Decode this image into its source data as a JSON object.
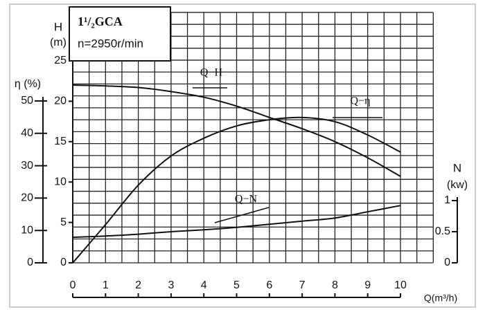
{
  "chart_data": {
    "type": "line",
    "title": "1¹/₂GCA",
    "subtitle": "n=2950r/min",
    "ylabel": [
      "H",
      "(m)"
    ],
    "y2label": "η (%)",
    "y3label": [
      "N",
      "(kw)"
    ],
    "xlabel": "Q(m³/h)",
    "x": [
      0,
      1,
      2,
      3,
      4,
      5,
      6,
      7,
      8,
      9,
      10
    ],
    "xlim": [
      0,
      10
    ],
    "xticks": [
      0,
      1,
      2,
      3,
      4,
      5,
      6,
      7,
      8,
      9,
      10
    ],
    "ylim": [
      0,
      25
    ],
    "yticks": [
      0,
      5,
      10,
      15,
      20,
      25
    ],
    "y2lim": [
      0,
      50
    ],
    "y2ticks": [
      0,
      10,
      20,
      30,
      40,
      50
    ],
    "y3lim": [
      0,
      1
    ],
    "y3ticks": [
      0,
      0.5,
      1
    ],
    "series": [
      {
        "name": "Q−H",
        "color": "#111",
        "axis": "y",
        "values": [
          22,
          21.9,
          21.7,
          21.2,
          20.5,
          19.4,
          18,
          16.6,
          15,
          13,
          10.7
        ]
      },
      {
        "name": "Q−η",
        "color": "#111",
        "axis": "y2",
        "values": [
          0,
          11.8,
          24,
          33,
          38.5,
          42.3,
          44.2,
          44.9,
          43.6,
          39.5,
          34.2
        ]
      },
      {
        "name": "Q−N",
        "color": "#111",
        "axis": "y3",
        "values": [
          0.41,
          0.43,
          0.46,
          0.5,
          0.53,
          0.57,
          0.62,
          0.67,
          0.72,
          0.82,
          0.92
        ]
      }
    ]
  }
}
